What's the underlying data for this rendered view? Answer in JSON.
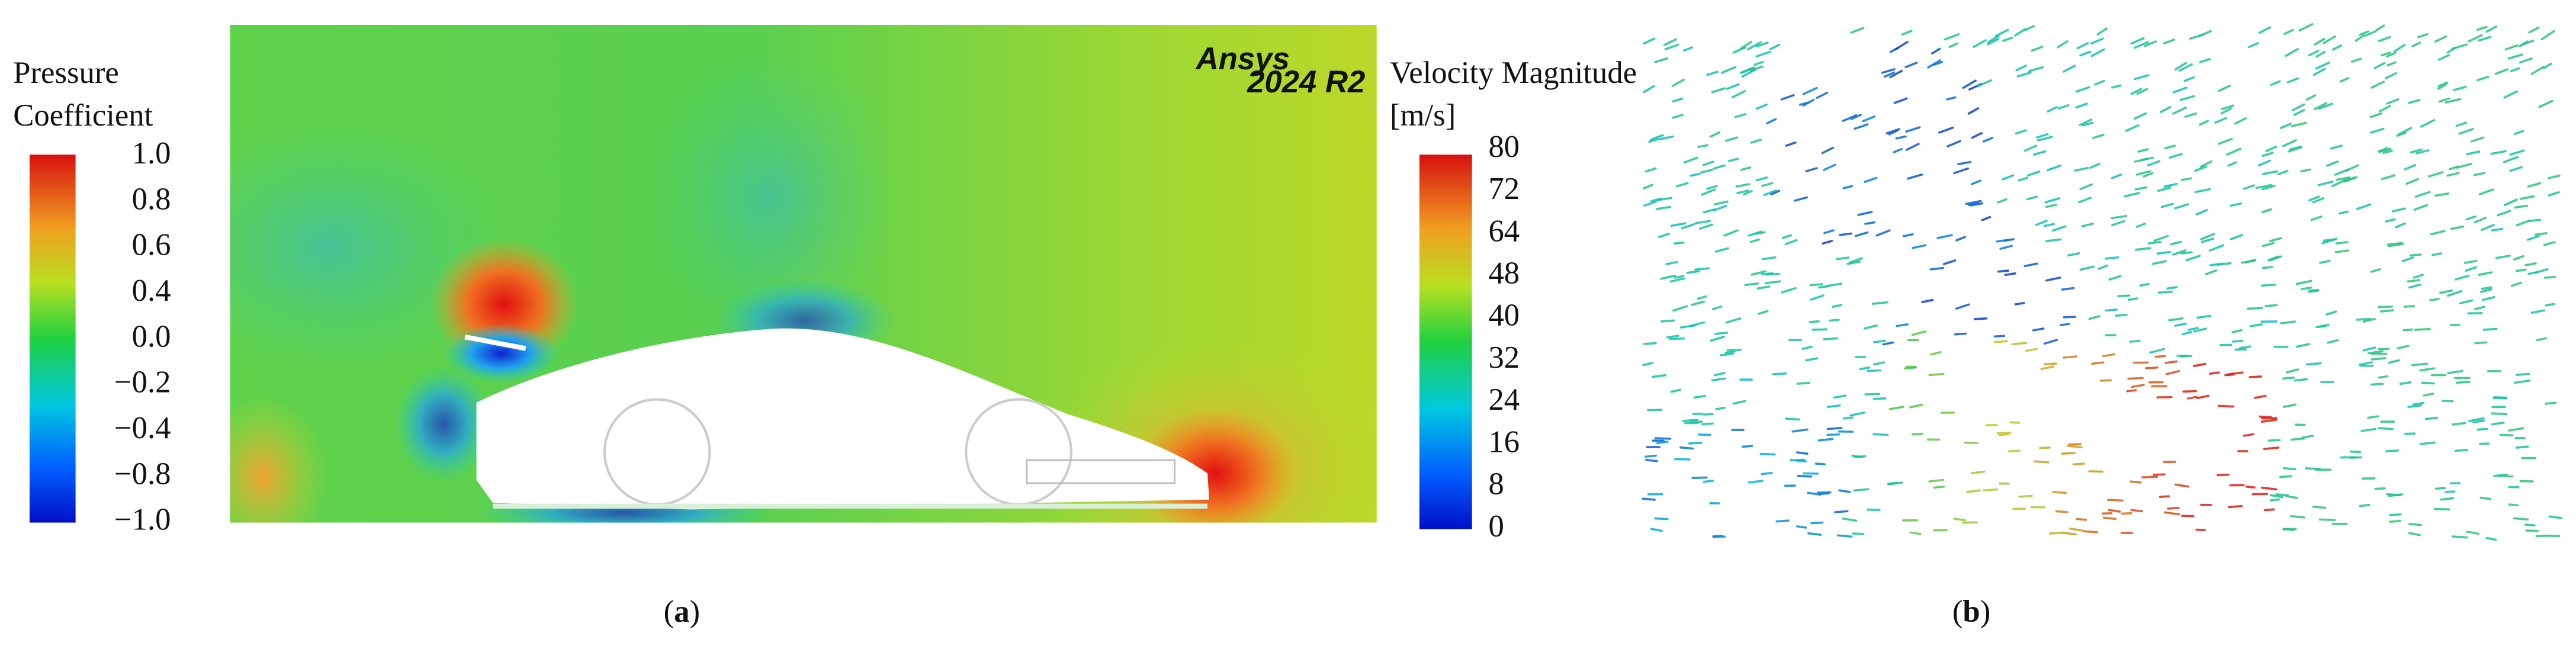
{
  "panel_a": {
    "pressure_legend": {
      "title_lines": [
        "Pressure",
        "Coefficient"
      ],
      "tick_labels": [
        "1.0",
        "0.8",
        "0.6",
        "0.4",
        "0.0",
        "−0.2",
        "−0.4",
        "−0.8",
        "−1.0"
      ]
    },
    "logo": {
      "name": "Ansys",
      "version": "2024 R2"
    },
    "velocity_legend": {
      "title_lines": [
        "Velocity Magnitude",
        "[m/s]"
      ],
      "tick_labels": [
        "80",
        "72",
        "64",
        "48",
        "40",
        "32",
        "24",
        "16",
        "8",
        "0"
      ]
    },
    "caption": {
      "open": "(",
      "letter": "a",
      "close": ")"
    }
  },
  "panel_b": {
    "caption": {
      "open": "(",
      "letter": "b",
      "close": ")"
    }
  }
}
